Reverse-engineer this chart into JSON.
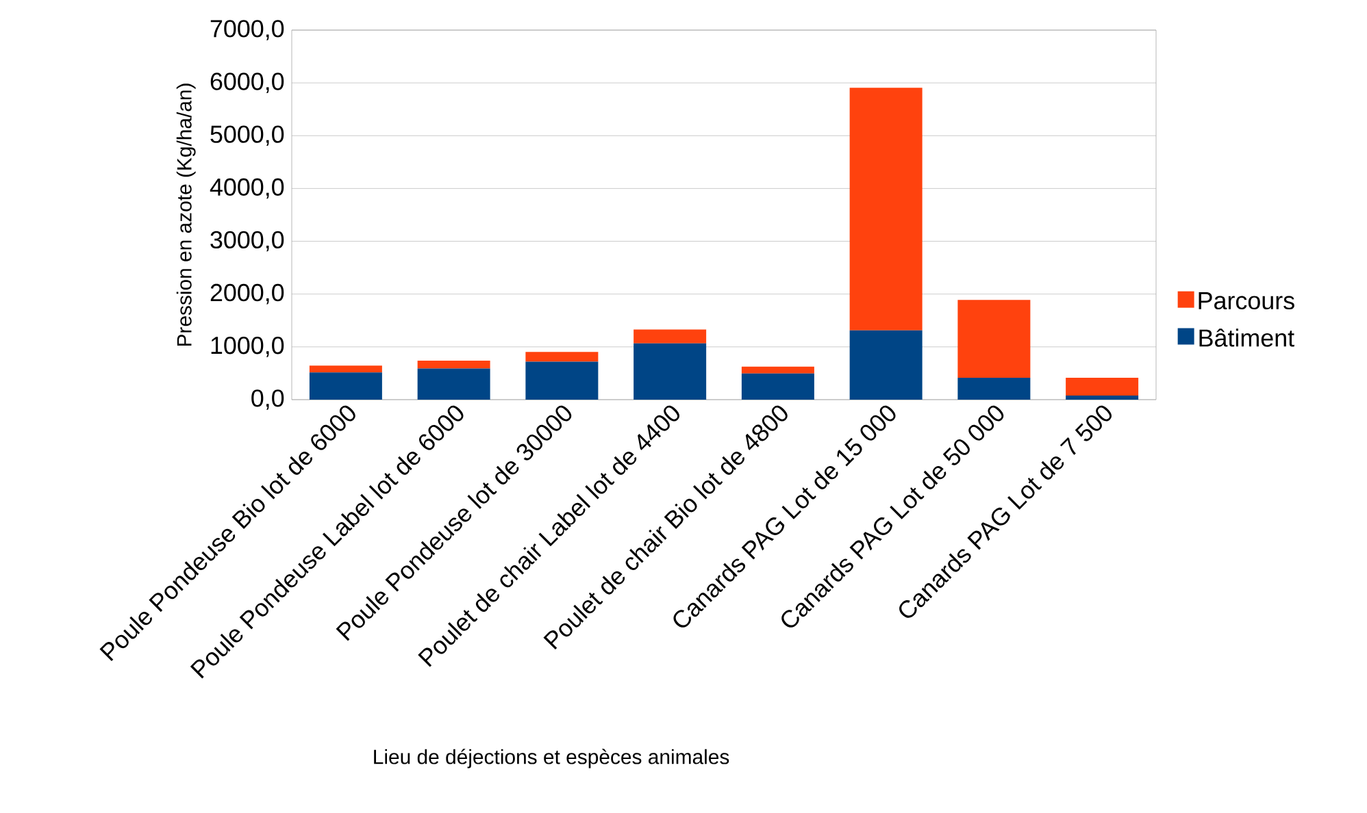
{
  "chart_data": {
    "type": "bar",
    "stacked": true,
    "xlabel": "Lieu de déjections et espèces animales",
    "ylabel": "Pression en azote (Kg/ha/an)",
    "categories": [
      "Poule Pondeuse Bio lot de 6000",
      "Poule Pondeuse Label lot de 6000",
      "Poule Pondeuse lot de 30000",
      "Poulet de chair Label lot de 4400",
      "Poulet de chair Bio lot de 4800",
      "Canards PAG Lot de 15 000",
      "Canards PAG Lot de 50 000",
      "Canards PAG Lot de 7 500"
    ],
    "series": [
      {
        "name": "Bâtiment",
        "color": "#004586",
        "values": [
          515,
          590,
          720,
          1067,
          495,
          1313,
          415,
          78
        ]
      },
      {
        "name": "Parcours",
        "color": "#ff420e",
        "values": [
          130,
          150,
          185,
          260,
          130,
          4594,
          1475,
          337
        ]
      }
    ],
    "ylim": [
      0,
      7000
    ],
    "yticks": [
      {
        "value": 0,
        "label": "0,0"
      },
      {
        "value": 1000,
        "label": "1000,0"
      },
      {
        "value": 2000,
        "label": "2000,0"
      },
      {
        "value": 3000,
        "label": "3000,0"
      },
      {
        "value": 4000,
        "label": "4000,0"
      },
      {
        "value": 5000,
        "label": "5000,0"
      },
      {
        "value": 6000,
        "label": "6000,0"
      },
      {
        "value": 7000,
        "label": "7000,0"
      }
    ],
    "grid": "y",
    "legend": "right"
  }
}
